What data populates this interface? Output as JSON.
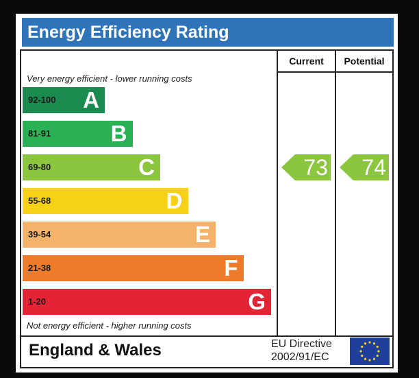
{
  "title": "Energy Efficiency Rating",
  "columns": {
    "current": "Current",
    "potential": "Potential"
  },
  "top_note": "Very energy efficient - lower running costs",
  "bottom_note": "Not energy efficient - higher running costs",
  "region": "England & Wales",
  "directive_line1": "EU Directive",
  "directive_line2": "2002/91/EC",
  "colors": {
    "title_bar": "#2f73b8",
    "A": "#1b8a4f",
    "B": "#2cb056",
    "C": "#8cc63f",
    "D": "#f7d118",
    "E": "#f5b26a",
    "F": "#ee7b2a",
    "G": "#e32336"
  },
  "chart_data": {
    "type": "bar",
    "categories": [
      "A",
      "B",
      "C",
      "D",
      "E",
      "F",
      "G"
    ],
    "ranges": [
      "92-100",
      "81-91",
      "69-80",
      "55-68",
      "39-54",
      "21-38",
      "1-20"
    ],
    "current": 73,
    "potential": 74,
    "current_band": "C",
    "potential_band": "C"
  }
}
